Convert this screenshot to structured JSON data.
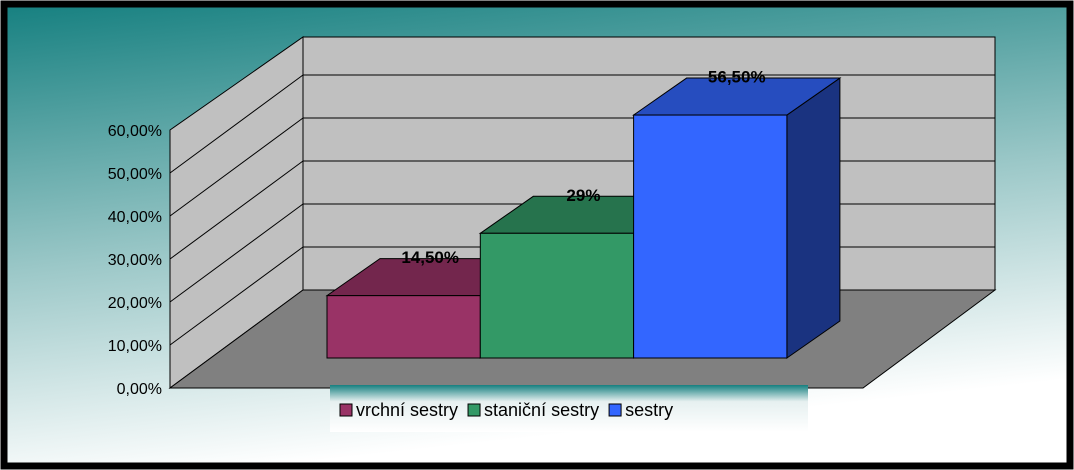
{
  "chart_data": {
    "type": "bar",
    "series": [
      {
        "name": "vrchní sestry",
        "color": "#993366",
        "values": [
          14.5
        ],
        "value_labels": [
          "14,50%"
        ]
      },
      {
        "name": "staniční sestry",
        "color": "#339966",
        "values": [
          29
        ],
        "value_labels": [
          "29%"
        ]
      },
      {
        "name": "sestry",
        "color": "#3366ff",
        "values": [
          56.5
        ],
        "value_labels": [
          "56,50%"
        ]
      }
    ],
    "ylim": [
      0,
      60
    ],
    "yticks": [
      {
        "value": 0,
        "label": "0,00%"
      },
      {
        "value": 10,
        "label": "10,00%"
      },
      {
        "value": 20,
        "label": "20,00%"
      },
      {
        "value": 30,
        "label": "30,00%"
      },
      {
        "value": 40,
        "label": "40,00%"
      },
      {
        "value": 50,
        "label": "50,00%"
      },
      {
        "value": 60,
        "label": "60,00%"
      }
    ],
    "grid": true,
    "legend": "bottom"
  }
}
